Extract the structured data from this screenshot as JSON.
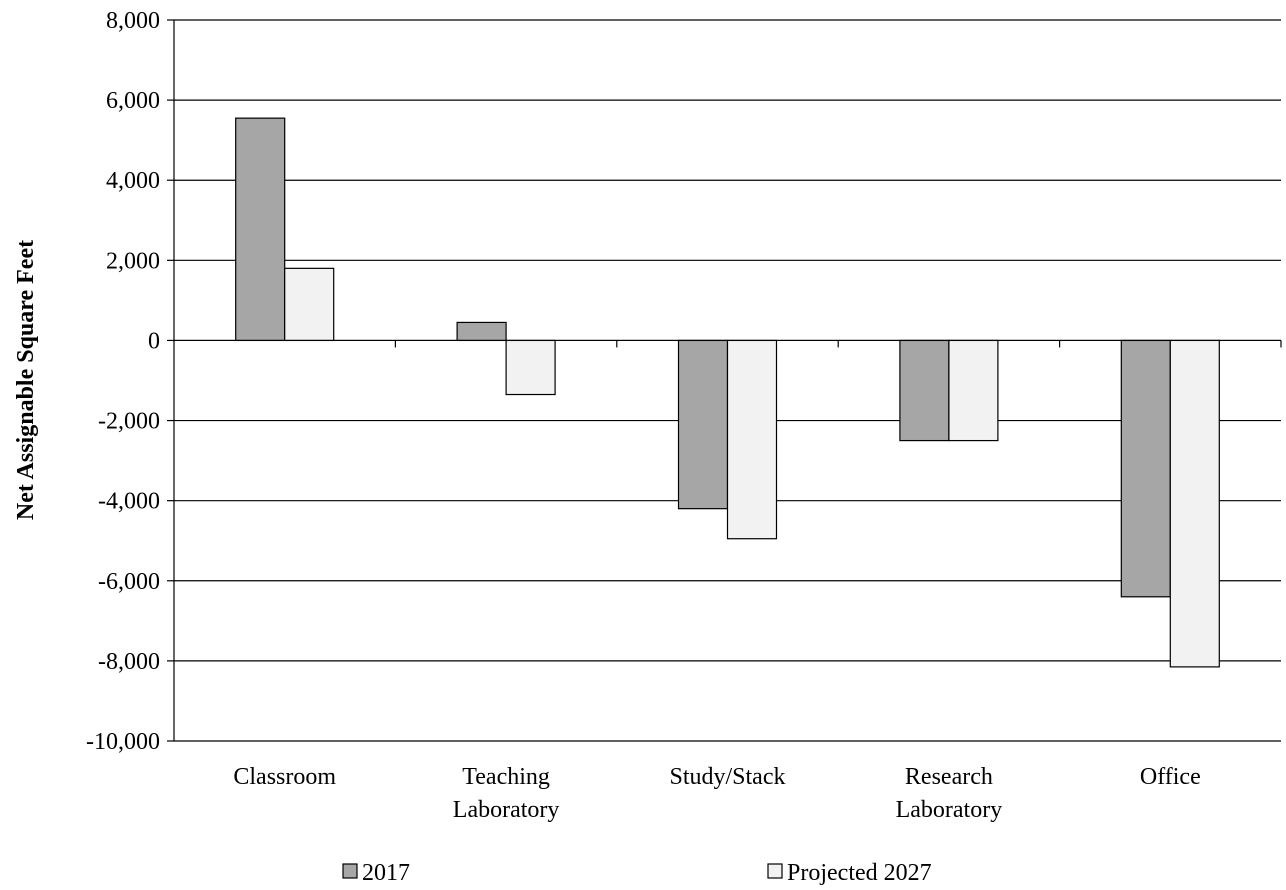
{
  "chart_data": {
    "type": "bar",
    "title": "",
    "xlabel": "",
    "ylabel": "Net Assignable Square Feet",
    "ylim": [
      -10000,
      8000
    ],
    "ytick_step": 2000,
    "ytick_labels": [
      "-10,000",
      "-8,000",
      "-6,000",
      "-4,000",
      "-2,000",
      "0",
      "2,000",
      "4,000",
      "6,000",
      "8,000"
    ],
    "grid": true,
    "legend_position": "bottom",
    "categories": [
      [
        "Classroom"
      ],
      [
        "Teaching",
        "Laboratory"
      ],
      [
        "Study/Stack"
      ],
      [
        "Research",
        "Laboratory"
      ],
      [
        "Office"
      ]
    ],
    "series": [
      {
        "name": "2017",
        "color": "#a6a6a6",
        "values": [
          5550,
          450,
          -4200,
          -2500,
          -6400
        ]
      },
      {
        "name": "Projected 2027",
        "color": "#f2f2f2",
        "values": [
          1800,
          -1350,
          -4950,
          -2500,
          -8150
        ]
      }
    ]
  }
}
